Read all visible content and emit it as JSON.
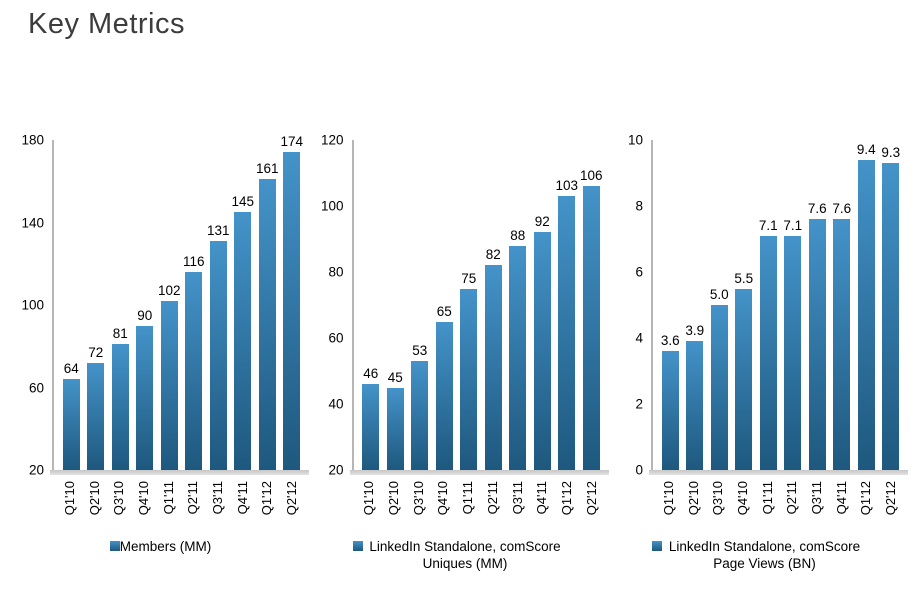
{
  "title": "Key Metrics",
  "colors": {
    "bar_top": "#4493c9",
    "bar_bottom": "#1e587e",
    "axis": "#b6b6b6",
    "baseline": "#d9d9d9",
    "title": "#3c3c3c",
    "label_text": "#000000"
  },
  "chart_data": [
    {
      "type": "bar",
      "title": "",
      "legend": "Members (MM)",
      "categories": [
        "Q1'10",
        "Q2'10",
        "Q3'10",
        "Q4'10",
        "Q1'11",
        "Q2'11",
        "Q3'11",
        "Q4'11",
        "Q1'12",
        "Q2'12"
      ],
      "values": [
        64,
        72,
        81,
        90,
        102,
        116,
        131,
        145,
        161,
        174
      ],
      "value_labels": [
        "64",
        "72",
        "81",
        "90",
        "102",
        "116",
        "131",
        "145",
        "161",
        "174"
      ],
      "ylim": [
        20,
        180
      ],
      "yticks": [
        180,
        140,
        100,
        60,
        20
      ],
      "grid": false,
      "legend_position": "bottom"
    },
    {
      "type": "bar",
      "title": "",
      "legend": "LinkedIn Standalone, comScore Uniques (MM)",
      "categories": [
        "Q1'10",
        "Q2'10",
        "Q3'10",
        "Q4'10",
        "Q1'11",
        "Q2'11",
        "Q3'11",
        "Q4'11",
        "Q1'12",
        "Q2'12"
      ],
      "values": [
        46,
        45,
        53,
        65,
        75,
        82,
        88,
        92,
        103,
        106
      ],
      "value_labels": [
        "46",
        "45",
        "53",
        "65",
        "75",
        "82",
        "88",
        "92",
        "103",
        "106"
      ],
      "ylim": [
        20,
        120
      ],
      "yticks": [
        120,
        100,
        80,
        60,
        40,
        20
      ],
      "grid": false,
      "legend_position": "bottom"
    },
    {
      "type": "bar",
      "title": "",
      "legend": "LinkedIn Standalone, comScore Page Views (BN)",
      "categories": [
        "Q1'10",
        "Q2'10",
        "Q3'10",
        "Q4'10",
        "Q1'11",
        "Q2'11",
        "Q3'11",
        "Q4'11",
        "Q1'12",
        "Q2'12"
      ],
      "values": [
        3.6,
        3.9,
        5.0,
        5.5,
        7.1,
        7.1,
        7.6,
        7.6,
        9.4,
        9.3
      ],
      "value_labels": [
        "3.6",
        "3.9",
        "5.0",
        "5.5",
        "7.1",
        "7.1",
        "7.6",
        "7.6",
        "9.4",
        "9.3"
      ],
      "ylim": [
        0,
        10
      ],
      "yticks": [
        10,
        8,
        6,
        4,
        2,
        0
      ],
      "grid": false,
      "legend_position": "bottom"
    }
  ]
}
